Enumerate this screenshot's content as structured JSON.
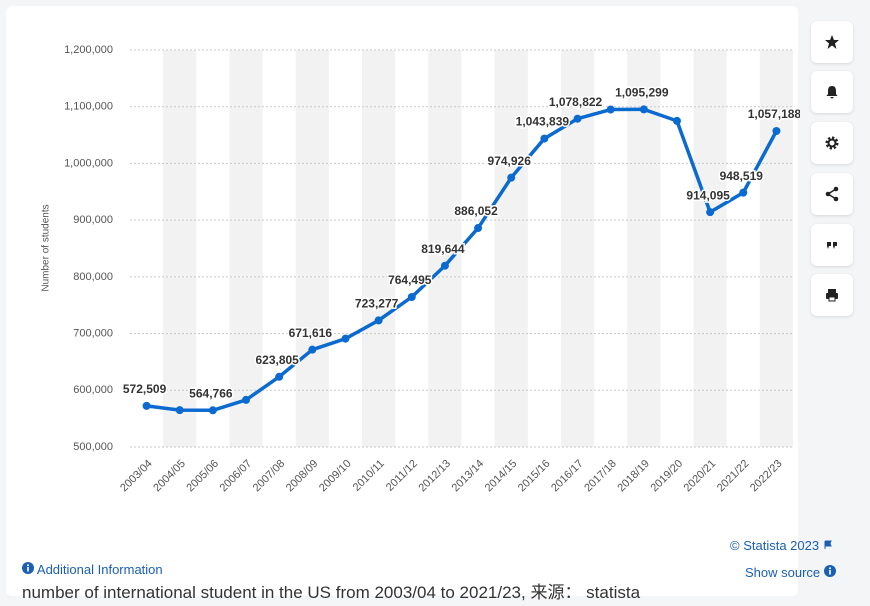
{
  "chart_data": {
    "type": "line",
    "y_label": "Number of students",
    "categories": [
      "2003/04",
      "2004/05",
      "2005/06",
      "2006/07",
      "2007/08",
      "2008/09",
      "2009/10",
      "2010/11",
      "2011/12",
      "2012/13",
      "2013/14",
      "2014/15",
      "2015/16",
      "2016/17",
      "2017/18",
      "2018/19",
      "2019/20",
      "2020/21",
      "2021/22",
      "2022/23"
    ],
    "values": [
      572509,
      565000,
      564766,
      583000,
      623805,
      671616,
      691000,
      723277,
      764495,
      819644,
      886052,
      974926,
      1043839,
      1078822,
      1095000,
      1095299,
      1075000,
      914095,
      948519,
      1057188
    ],
    "value_labels": [
      "572,509",
      null,
      "564,766",
      null,
      "623,805",
      "671,616",
      null,
      "723,277",
      "764,495",
      "819,644",
      "886,052",
      "974,926",
      "1,043,839",
      "1,078,822",
      null,
      "1,095,299",
      null,
      "914,095",
      "948,519",
      "1,057,188"
    ],
    "color": "#0a6ad0",
    "ylim": [
      500000,
      1200000
    ],
    "yticks": [
      {
        "value": 500000,
        "label": "500,000"
      },
      {
        "value": 600000,
        "label": "600,000"
      },
      {
        "value": 700000,
        "label": "700,000"
      },
      {
        "value": 800000,
        "label": "800,000"
      },
      {
        "value": 900000,
        "label": "900,000"
      },
      {
        "value": 1000000,
        "label": "1,000,000"
      },
      {
        "value": 1100000,
        "label": "1,100,000"
      },
      {
        "value": 1200000,
        "label": "1,200,000"
      }
    ],
    "grid": true
  },
  "copyright": "© Statista 2023",
  "additional_info": "Additional Information",
  "show_source": "Show source",
  "caption": "number of international student  in the US from 2003/04 to 2021/23, 来源： statista"
}
